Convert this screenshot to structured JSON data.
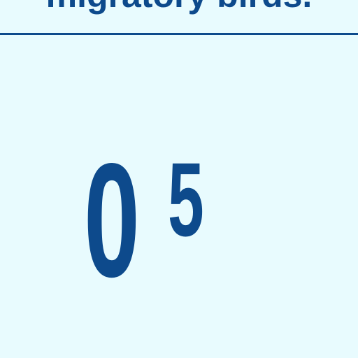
{
  "header": {
    "title": "migratory birds."
  },
  "counter": {
    "main": "0",
    "superscript": "5"
  },
  "colors": {
    "background": "#e8fbfe",
    "accent": "#0d4a8c"
  }
}
